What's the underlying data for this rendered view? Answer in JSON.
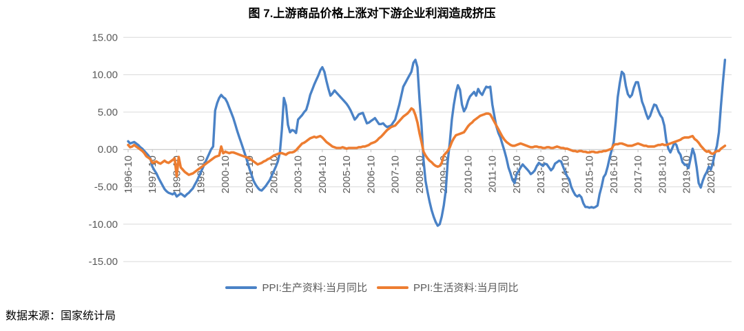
{
  "title": "图 7.上游商品价格上涨对下游企业利润造成挤压",
  "source_note": "数据来源：国家统计局",
  "colors": {
    "background": "#FFFFFF",
    "grid": "#D9D9D9",
    "axis": "#BFBFBF",
    "tick_label": "#595959",
    "series_blue": "#4A82C6",
    "series_orange": "#ED7D31"
  },
  "chart_data": {
    "type": "line",
    "title": "图 7.上游商品价格上涨对下游企业利润造成挤压",
    "xlabel": "",
    "ylabel": "",
    "x_unit": "month",
    "x_range": [
      "1996-10",
      "2021-05"
    ],
    "ylim": [
      -15,
      15
    ],
    "grid": true,
    "legend_position": "bottom",
    "y_tick_values": [
      15,
      10,
      5,
      0,
      -5,
      -10,
      -15
    ],
    "y_tick_labels": [
      "15.00",
      "10.00",
      "5.00",
      "0.00",
      "-5.00",
      "-10.00",
      "-15.00"
    ],
    "x_tick_labels": [
      "1996-10",
      "1997-10",
      "1998-10",
      "1999-10",
      "2000-10",
      "2001-10",
      "2002-10",
      "2003-10",
      "2004-10",
      "2005-10",
      "2006-10",
      "2007-10",
      "2008-10",
      "2009-10",
      "2010-10",
      "2011-10",
      "2012-10",
      "2013-10",
      "2014-10",
      "2015-10",
      "2016-10",
      "2017-10",
      "2018-10",
      "2019-10",
      "2020-10"
    ],
    "series": [
      {
        "id": "ppi-producer-goods",
        "name": "PPI:生产资料:当月同比",
        "color": "#4A82C6",
        "start_month": "1996-10",
        "values_monthly": [
          1.1,
          0.8,
          0.9,
          1.0,
          0.8,
          0.6,
          0.3,
          0.1,
          -0.2,
          -0.5,
          -0.8,
          -1.2,
          -2.3,
          -2.8,
          -3.2,
          -3.8,
          -4.3,
          -4.8,
          -5.3,
          -5.6,
          -5.8,
          -5.9,
          -6.0,
          -5.8,
          -6.3,
          -6.1,
          -5.9,
          -6.1,
          -6.3,
          -6.0,
          -5.8,
          -5.5,
          -5.2,
          -4.7,
          -4.2,
          -3.6,
          -3.0,
          -2.4,
          -1.8,
          -1.2,
          -0.6,
          0.0,
          0.4,
          5.2,
          6.2,
          6.9,
          7.3,
          7.0,
          6.8,
          6.3,
          5.6,
          4.9,
          4.2,
          3.3,
          2.4,
          1.6,
          0.8,
          0.0,
          -0.8,
          -1.7,
          -2.6,
          -3.4,
          -4.2,
          -4.7,
          -5.1,
          -5.4,
          -5.5,
          -5.2,
          -4.9,
          -4.5,
          -4.1,
          -3.5,
          -2.9,
          -2.3,
          -1.6,
          -0.4,
          2.7,
          6.9,
          5.9,
          3.3,
          2.3,
          2.6,
          2.5,
          2.2,
          4.0,
          4.3,
          4.6,
          5.0,
          5.3,
          6.2,
          7.3,
          8.0,
          8.7,
          9.3,
          9.9,
          10.6,
          11.0,
          10.4,
          9.2,
          8.1,
          7.2,
          7.5,
          7.9,
          7.6,
          7.3,
          7.0,
          6.7,
          6.4,
          6.1,
          5.7,
          5.2,
          4.6,
          4.0,
          4.3,
          4.7,
          4.8,
          4.9,
          4.2,
          3.5,
          3.6,
          3.8,
          4.0,
          4.2,
          3.8,
          3.4,
          3.4,
          3.5,
          3.2,
          3.0,
          3.1,
          3.2,
          3.6,
          4.0,
          5.0,
          6.0,
          7.2,
          8.4,
          8.9,
          9.4,
          9.9,
          10.4,
          11.6,
          12.0,
          11.0,
          6.8,
          3.2,
          -1.4,
          -4.2,
          -5.7,
          -7.0,
          -8.1,
          -9.0,
          -9.7,
          -10.2,
          -10.0,
          -9.0,
          -7.5,
          -5.5,
          -1.5,
          1.0,
          4.0,
          6.0,
          7.6,
          8.6,
          8.0,
          6.0,
          5.1,
          5.6,
          6.5,
          7.1,
          7.4,
          7.7,
          7.2,
          8.1,
          7.6,
          7.3,
          7.9,
          8.4,
          8.3,
          8.4,
          6.0,
          4.5,
          3.1,
          2.2,
          1.6,
          0.7,
          -0.2,
          -1.2,
          -2.4,
          -3.2,
          -4.1,
          -4.5,
          -3.3,
          -2.9,
          -2.4,
          -2.0,
          -2.3,
          -2.6,
          -2.9,
          -3.3,
          -3.1,
          -2.8,
          -2.2,
          -1.8,
          -2.0,
          -2.2,
          -1.9,
          -2.0,
          -2.4,
          -2.8,
          -2.5,
          -1.9,
          -1.7,
          -1.5,
          -1.6,
          -2.3,
          -3.0,
          -3.6,
          -4.0,
          -5.0,
          -5.6,
          -6.1,
          -6.3,
          -6.1,
          -6.4,
          -7.2,
          -7.7,
          -7.7,
          -7.8,
          -7.7,
          -7.8,
          -7.7,
          -7.5,
          -6.0,
          -5.0,
          -3.7,
          -3.3,
          -2.3,
          -1.1,
          -0.1,
          1.0,
          3.7,
          7.0,
          8.9,
          10.4,
          10.1,
          8.5,
          7.4,
          7.0,
          7.3,
          8.3,
          9.0,
          9.0,
          7.8,
          6.4,
          5.7,
          4.8,
          4.1,
          4.5,
          5.3,
          6.0,
          5.9,
          5.2,
          4.6,
          4.2,
          3.2,
          1.2,
          0.1,
          -0.4,
          0.2,
          0.9,
          0.6,
          -0.3,
          -0.7,
          -1.7,
          -2.0,
          -2.1,
          -2.5,
          -1.2,
          0.1,
          -0.7,
          -2.4,
          -4.5,
          -5.1,
          -4.2,
          -3.5,
          -3.0,
          -2.3,
          -2.7,
          -1.8,
          -0.5,
          0.5,
          2.3,
          5.8,
          9.1,
          12.0
        ]
      },
      {
        "id": "ppi-consumer-goods",
        "name": "PPI:生活资料:当月同比",
        "color": "#ED7D31",
        "start_month": "1996-10",
        "values_monthly": [
          0.6,
          0.3,
          0.4,
          0.6,
          0.4,
          0.2,
          0.0,
          -0.2,
          -0.5,
          -0.9,
          -1.1,
          -1.3,
          -1.8,
          -1.7,
          -1.6,
          -1.8,
          -1.9,
          -1.7,
          -1.5,
          -1.7,
          -1.8,
          -1.6,
          -1.4,
          -1.2,
          -3.6,
          -1.0,
          -2.4,
          -2.7,
          -3.0,
          -3.2,
          -3.4,
          -3.3,
          -3.2,
          -3.0,
          -2.8,
          -2.6,
          -2.4,
          -2.2,
          -2.0,
          -1.8,
          -1.6,
          -1.4,
          -1.2,
          -1.0,
          -0.9,
          -0.8,
          0.4,
          -0.5,
          -0.3,
          -0.4,
          -0.5,
          -0.4,
          -0.4,
          -0.5,
          -0.6,
          -0.7,
          -0.8,
          -0.9,
          -1.0,
          -1.1,
          -1.2,
          -1.4,
          -1.6,
          -1.8,
          -2.0,
          -1.9,
          -1.8,
          -1.6,
          -1.5,
          -1.3,
          -1.2,
          -1.0,
          -0.8,
          -0.7,
          -0.6,
          -0.5,
          -0.5,
          -0.6,
          -0.7,
          -0.5,
          -0.4,
          -0.4,
          -0.3,
          -0.1,
          0.2,
          0.5,
          0.8,
          0.9,
          1.1,
          1.3,
          1.5,
          1.6,
          1.7,
          1.6,
          1.7,
          1.8,
          1.6,
          1.3,
          1.0,
          0.8,
          0.6,
          0.4,
          0.3,
          0.2,
          0.2,
          0.2,
          0.3,
          0.2,
          0.1,
          0.2,
          0.2,
          0.2,
          0.2,
          0.2,
          0.3,
          0.3,
          0.4,
          0.4,
          0.5,
          0.6,
          0.8,
          0.9,
          1.0,
          1.2,
          1.5,
          1.7,
          2.0,
          2.3,
          2.6,
          2.8,
          3.0,
          3.1,
          3.2,
          3.5,
          3.8,
          4.1,
          4.4,
          4.6,
          4.8,
          5.1,
          5.5,
          5.3,
          4.6,
          3.6,
          2.2,
          1.0,
          -0.3,
          -0.8,
          -1.2,
          -1.5,
          -1.7,
          -2.0,
          -2.2,
          -2.3,
          -2.2,
          -1.8,
          -0.8,
          -0.5,
          -0.2,
          0.3,
          1.0,
          1.5,
          1.9,
          2.0,
          2.1,
          2.2,
          2.3,
          2.7,
          3.1,
          3.4,
          3.6,
          3.9,
          4.1,
          4.3,
          4.5,
          4.6,
          4.7,
          4.8,
          4.8,
          4.7,
          4.2,
          3.7,
          3.2,
          2.7,
          2.2,
          1.7,
          1.3,
          1.0,
          0.8,
          0.6,
          0.5,
          0.5,
          0.6,
          0.7,
          0.8,
          0.7,
          0.6,
          0.5,
          0.4,
          0.3,
          0.3,
          0.4,
          0.4,
          0.3,
          0.3,
          0.2,
          0.2,
          0.3,
          0.3,
          0.2,
          0.2,
          0.3,
          0.4,
          0.3,
          0.2,
          0.2,
          0.1,
          0.1,
          0.0,
          -0.1,
          -0.2,
          -0.2,
          -0.3,
          -0.2,
          -0.2,
          -0.3,
          -0.3,
          -0.4,
          -0.4,
          -0.3,
          -0.3,
          -0.4,
          -0.4,
          -0.3,
          -0.3,
          -0.2,
          -0.2,
          -0.1,
          0.0,
          0.1,
          0.6,
          0.7,
          0.7,
          0.8,
          0.8,
          0.7,
          0.6,
          0.5,
          0.5,
          0.5,
          0.6,
          0.7,
          0.8,
          0.7,
          0.6,
          0.5,
          0.5,
          0.4,
          0.4,
          0.4,
          0.4,
          0.5,
          0.6,
          0.6,
          0.7,
          0.6,
          0.6,
          0.7,
          0.8,
          0.9,
          1.0,
          1.1,
          1.2,
          1.3,
          1.5,
          1.6,
          1.6,
          1.6,
          1.7,
          1.8,
          1.4,
          1.2,
          0.9,
          0.5,
          0.2,
          -0.1,
          -0.3,
          -0.2,
          -0.5,
          -0.6,
          -0.4,
          -0.2,
          -0.2,
          0.1,
          0.3,
          0.5
        ]
      }
    ]
  }
}
